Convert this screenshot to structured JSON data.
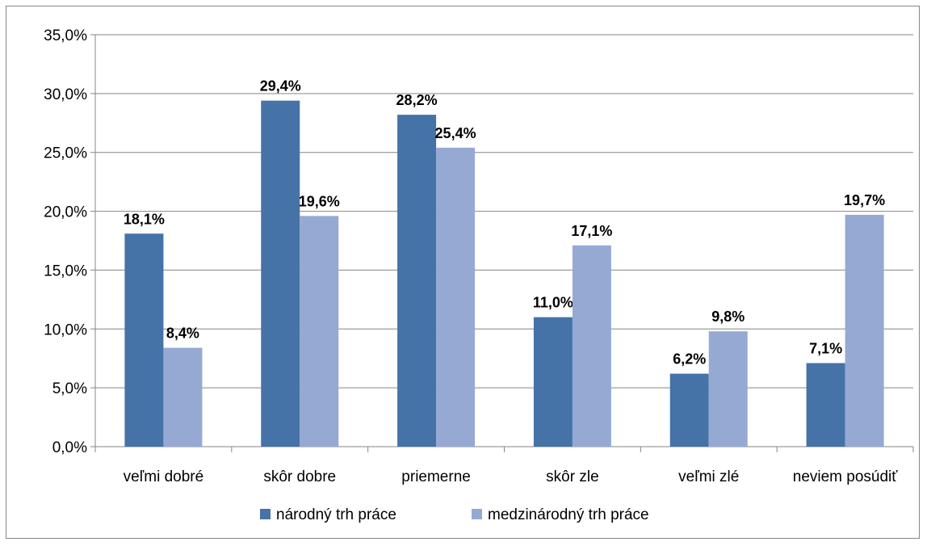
{
  "chart_data": {
    "type": "bar",
    "title": "",
    "xlabel": "",
    "ylabel": "",
    "categories": [
      "veľmi dobré",
      "skôr dobre",
      "priemerne",
      "skôr zle",
      "veľmi zlé",
      "neviem posúdiť"
    ],
    "series": [
      {
        "name": "národný trh práce",
        "color": "#4572A7",
        "values": [
          18.1,
          29.4,
          28.2,
          11.0,
          6.2,
          7.1
        ],
        "labels": [
          "18,1%",
          "29,4%",
          "28,2%",
          "11,0%",
          "6,2%",
          "7,1%"
        ]
      },
      {
        "name": "medzinárodný trh práce",
        "color": "#95A9D3",
        "values": [
          8.4,
          19.6,
          25.4,
          17.1,
          9.8,
          19.7
        ],
        "labels": [
          "8,4%",
          "19,6%",
          "25,4%",
          "17,1%",
          "9,8%",
          "19,7%"
        ]
      }
    ],
    "ylim": [
      0,
      35
    ],
    "yticks": [
      0,
      5,
      10,
      15,
      20,
      25,
      30,
      35
    ],
    "ytick_labels": [
      "0,0%",
      "5,0%",
      "10,0%",
      "15,0%",
      "20,0%",
      "25,0%",
      "30,0%",
      "35,0%"
    ],
    "grid": true,
    "legend_position": "bottom"
  }
}
